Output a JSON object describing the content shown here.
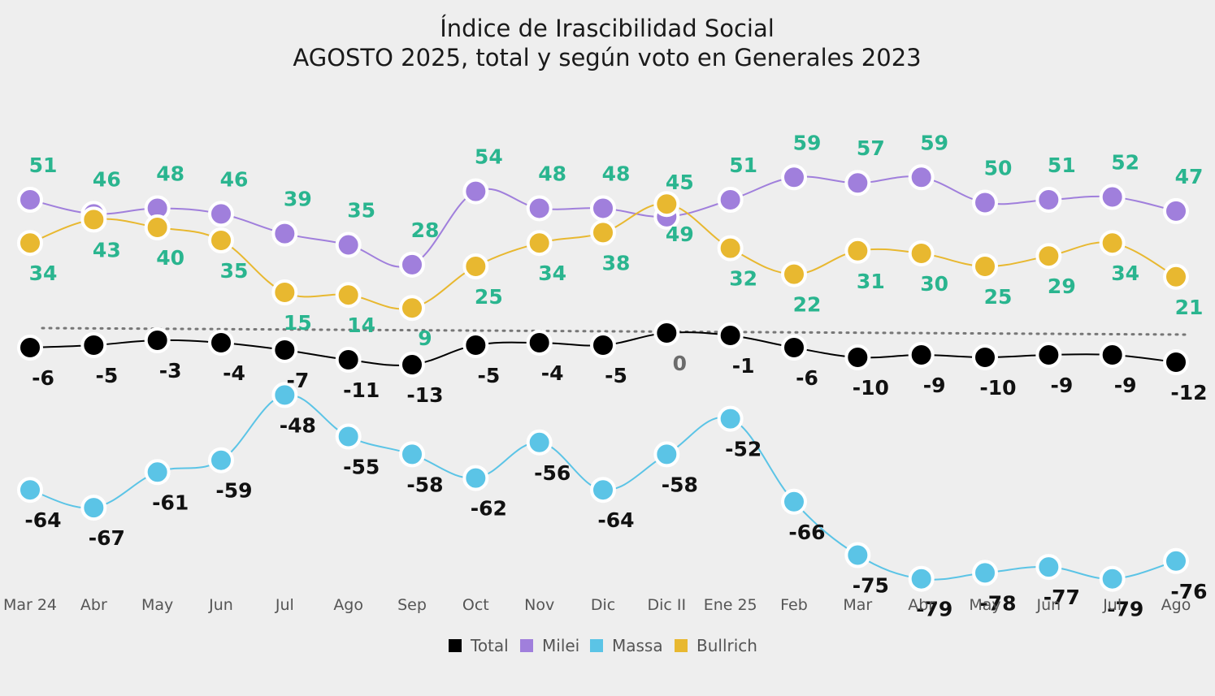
{
  "chart_data": {
    "type": "line",
    "title": "Índice de Irascibilidad Social",
    "subtitle": "AGOSTO 2025, total y según voto en Generales 2023",
    "categories": [
      "Mar 24",
      "Abr",
      "May",
      "Jun",
      "Jul",
      "Ago",
      "Sep",
      "Oct",
      "Nov",
      "Dic",
      "Dic II",
      "Ene 25",
      "Feb",
      "Mar",
      "Abr",
      "May",
      "Jun",
      "Jul",
      "Ago"
    ],
    "series": [
      {
        "name": "Total",
        "color": "#000000",
        "values": [
          -6,
          -5,
          -3,
          -4,
          -7,
          -11,
          -13,
          -5,
          -4,
          -5,
          0,
          -1,
          -6,
          -10,
          -9,
          -10,
          -9,
          -9,
          -12
        ]
      },
      {
        "name": "Milei",
        "color": "#a07fdc",
        "values": [
          51,
          46,
          48,
          46,
          39,
          35,
          28,
          54,
          48,
          48,
          45,
          51,
          59,
          57,
          59,
          50,
          51,
          52,
          47
        ]
      },
      {
        "name": "Massa",
        "color": "#5bc4e6",
        "values": [
          -64,
          -67,
          -61,
          -59,
          -48,
          -55,
          -58,
          -62,
          -56,
          -64,
          -58,
          -52,
          -66,
          -75,
          -79,
          -78,
          -77,
          -79,
          -76
        ]
      },
      {
        "name": "Bullrich",
        "color": "#e8b830",
        "values": [
          34,
          43,
          40,
          35,
          15,
          14,
          9,
          25,
          34,
          38,
          49,
          32,
          22,
          31,
          30,
          25,
          29,
          34,
          21
        ]
      }
    ],
    "reference_line": {
      "value": 0,
      "style": "dotted"
    },
    "grid": false,
    "legend_position": "bottom-center"
  }
}
